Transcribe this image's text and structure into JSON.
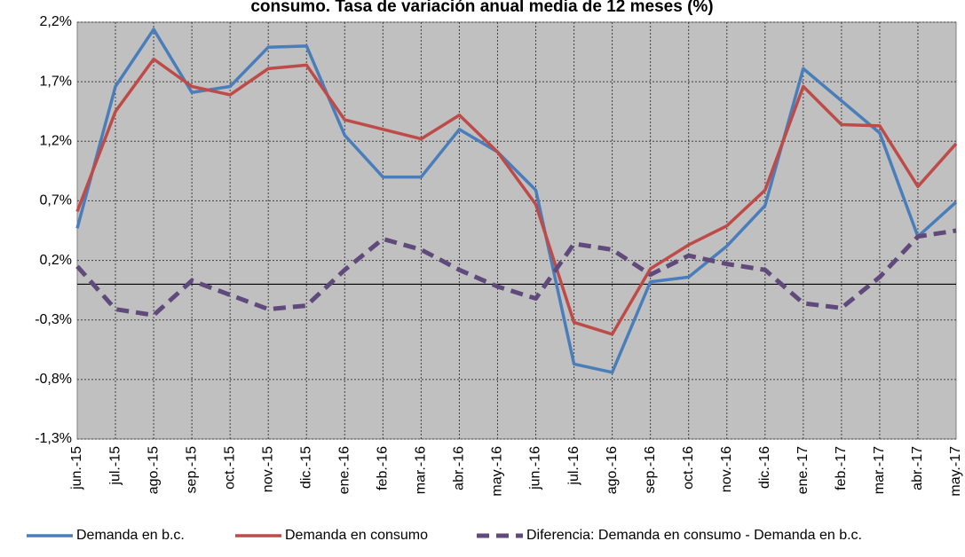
{
  "chart_data": {
    "type": "line",
    "title": "consumo. Tasa de variación anual media de 12 meses (%)",
    "categories": [
      "jun.-15",
      "jul.-15",
      "ago.-15",
      "sep.-15",
      "oct.-15",
      "nov.-15",
      "dic.-15",
      "ene.-16",
      "feb.-16",
      "mar.-16",
      "abr.-16",
      "may.-16",
      "jun.-16",
      "jul.-16",
      "ago.-16",
      "sep.-16",
      "oct.-16",
      "nov.-16",
      "dic.-16",
      "ene.-17",
      "feb.-17",
      "mar.-17",
      "abr.-17",
      "may.-17"
    ],
    "series": [
      {
        "name": "Demanda en b.c.",
        "color": "#4a7ebb",
        "dashed": false,
        "values": [
          0.47,
          1.66,
          2.14,
          1.61,
          1.66,
          1.99,
          2.0,
          1.25,
          0.9,
          0.9,
          1.3,
          1.11,
          0.79,
          -0.67,
          -0.74,
          0.02,
          0.06,
          0.32,
          0.66,
          1.81,
          1.54,
          1.27,
          0.4,
          0.69
        ]
      },
      {
        "name": "Demanda en consumo",
        "color": "#be4b48",
        "dashed": false,
        "values": [
          0.61,
          1.45,
          1.89,
          1.66,
          1.59,
          1.81,
          1.84,
          1.38,
          1.3,
          1.22,
          1.42,
          1.11,
          0.67,
          -0.32,
          -0.42,
          0.13,
          0.33,
          0.49,
          0.79,
          1.66,
          1.34,
          1.33,
          0.82,
          1.18
        ]
      },
      {
        "name": "Diferencia: Demanda en consumo - Demanda en b.c.",
        "color": "#604a7b",
        "dashed": true,
        "values": [
          0.15,
          -0.21,
          -0.26,
          0.03,
          -0.09,
          -0.21,
          -0.18,
          0.12,
          0.38,
          0.29,
          0.12,
          -0.02,
          -0.12,
          0.34,
          0.29,
          0.08,
          0.24,
          0.17,
          0.12,
          -0.16,
          -0.2,
          0.06,
          0.4,
          0.45
        ]
      }
    ],
    "ylim": [
      -1.3,
      2.2
    ],
    "yticks": [
      {
        "value": -1.3,
        "label": "-1,3%"
      },
      {
        "value": -0.8,
        "label": "-0,8%"
      },
      {
        "value": -0.3,
        "label": "-0,3%"
      },
      {
        "value": 0.2,
        "label": "0,2%"
      },
      {
        "value": 0.7,
        "label": "0,7%"
      },
      {
        "value": 1.2,
        "label": "1,2%"
      },
      {
        "value": 1.7,
        "label": "1,7%"
      },
      {
        "value": 2.2,
        "label": "2,2%"
      }
    ],
    "grid": true,
    "plot_background": "#c0c0c0",
    "legend": "bottom"
  }
}
